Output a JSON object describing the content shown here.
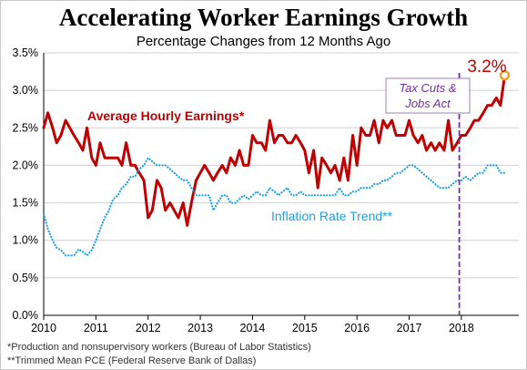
{
  "chart_data": {
    "type": "line",
    "title": "Accelerating Worker Earnings Growth",
    "subtitle": "Percentage Changes from 12 Months Ago",
    "xlim": [
      2010,
      2019.1
    ],
    "ylim": [
      0,
      3.5
    ],
    "grid": true,
    "x_ticks": [
      "2010",
      "2011",
      "2012",
      "2013",
      "2014",
      "2015",
      "2016",
      "2017",
      "2018"
    ],
    "y_ticks": [
      "0.0%",
      "0.5%",
      "1.0%",
      "1.5%",
      "2.0%",
      "2.5%",
      "3.0%",
      "3.5%"
    ],
    "series": [
      {
        "name": "Average Hourly Earnings*",
        "color": "#c00000",
        "style": "solid",
        "x": [
          2010.0,
          2010.08,
          2010.17,
          2010.25,
          2010.33,
          2010.42,
          2010.5,
          2010.58,
          2010.67,
          2010.75,
          2010.83,
          2010.92,
          2011.0,
          2011.08,
          2011.17,
          2011.25,
          2011.33,
          2011.42,
          2011.5,
          2011.58,
          2011.67,
          2011.75,
          2011.83,
          2011.92,
          2012.0,
          2012.08,
          2012.17,
          2012.25,
          2012.33,
          2012.42,
          2012.5,
          2012.58,
          2012.67,
          2012.75,
          2012.83,
          2012.92,
          2013.0,
          2013.08,
          2013.17,
          2013.25,
          2013.33,
          2013.42,
          2013.5,
          2013.58,
          2013.67,
          2013.75,
          2013.83,
          2013.92,
          2014.0,
          2014.08,
          2014.17,
          2014.25,
          2014.33,
          2014.42,
          2014.5,
          2014.58,
          2014.67,
          2014.75,
          2014.83,
          2014.92,
          2015.0,
          2015.08,
          2015.17,
          2015.25,
          2015.33,
          2015.42,
          2015.5,
          2015.58,
          2015.67,
          2015.75,
          2015.83,
          2015.92,
          2016.0,
          2016.08,
          2016.17,
          2016.25,
          2016.33,
          2016.42,
          2016.5,
          2016.58,
          2016.67,
          2016.75,
          2016.83,
          2016.92,
          2017.0,
          2017.08,
          2017.17,
          2017.25,
          2017.33,
          2017.42,
          2017.5,
          2017.58,
          2017.67,
          2017.75,
          2017.83,
          2017.92,
          2018.0,
          2018.08,
          2018.17,
          2018.25,
          2018.33,
          2018.42,
          2018.5,
          2018.58,
          2018.67,
          2018.75,
          2018.83
        ],
        "values": [
          2.5,
          2.7,
          2.5,
          2.3,
          2.4,
          2.6,
          2.5,
          2.4,
          2.3,
          2.2,
          2.5,
          2.1,
          2.0,
          2.3,
          2.1,
          2.1,
          2.1,
          2.1,
          2.0,
          2.3,
          2.0,
          2.0,
          1.9,
          1.8,
          1.3,
          1.4,
          1.8,
          1.7,
          1.4,
          1.5,
          1.4,
          1.3,
          1.5,
          1.2,
          1.5,
          1.8,
          1.9,
          2.0,
          1.9,
          1.8,
          1.9,
          2.0,
          1.9,
          2.1,
          2.0,
          2.2,
          2.0,
          2.0,
          2.4,
          2.3,
          2.3,
          2.2,
          2.6,
          2.3,
          2.4,
          2.4,
          2.3,
          2.3,
          2.4,
          2.3,
          2.2,
          1.9,
          2.2,
          1.7,
          2.1,
          2.0,
          1.9,
          2.0,
          1.8,
          2.1,
          1.8,
          2.4,
          2.0,
          2.5,
          2.4,
          2.4,
          2.6,
          2.3,
          2.6,
          2.5,
          2.6,
          2.4,
          2.4,
          2.4,
          2.6,
          2.4,
          2.3,
          2.4,
          2.2,
          2.3,
          2.2,
          2.3,
          2.2,
          2.6,
          2.2,
          2.3,
          2.4,
          2.4,
          2.5,
          2.6,
          2.6,
          2.7,
          2.8,
          2.8,
          2.9,
          2.8,
          3.2
        ]
      },
      {
        "name": "Inflation Rate Trend**",
        "color": "#1ba1e2",
        "style": "dotted",
        "x": [
          2010.0,
          2010.08,
          2010.17,
          2010.25,
          2010.33,
          2010.42,
          2010.5,
          2010.58,
          2010.67,
          2010.75,
          2010.83,
          2010.92,
          2011.0,
          2011.08,
          2011.17,
          2011.25,
          2011.33,
          2011.42,
          2011.5,
          2011.58,
          2011.67,
          2011.75,
          2011.83,
          2011.92,
          2012.0,
          2012.08,
          2012.17,
          2012.25,
          2012.33,
          2012.42,
          2012.5,
          2012.58,
          2012.67,
          2012.75,
          2012.83,
          2012.92,
          2013.0,
          2013.08,
          2013.17,
          2013.25,
          2013.33,
          2013.42,
          2013.5,
          2013.58,
          2013.67,
          2013.75,
          2013.83,
          2013.92,
          2014.0,
          2014.08,
          2014.17,
          2014.25,
          2014.33,
          2014.42,
          2014.5,
          2014.58,
          2014.67,
          2014.75,
          2014.83,
          2014.92,
          2015.0,
          2015.08,
          2015.17,
          2015.25,
          2015.33,
          2015.42,
          2015.5,
          2015.58,
          2015.67,
          2015.75,
          2015.83,
          2015.92,
          2016.0,
          2016.08,
          2016.17,
          2016.25,
          2016.33,
          2016.42,
          2016.5,
          2016.58,
          2016.67,
          2016.75,
          2016.83,
          2016.92,
          2017.0,
          2017.08,
          2017.17,
          2017.25,
          2017.33,
          2017.42,
          2017.5,
          2017.58,
          2017.67,
          2017.75,
          2017.83,
          2017.92,
          2018.0,
          2018.08,
          2018.17,
          2018.25,
          2018.33,
          2018.42,
          2018.5,
          2018.58,
          2018.67,
          2018.75,
          2018.83
        ],
        "values": [
          1.35,
          1.15,
          1.0,
          0.9,
          0.87,
          0.8,
          0.8,
          0.8,
          0.88,
          0.85,
          0.8,
          0.87,
          1.0,
          1.15,
          1.3,
          1.4,
          1.55,
          1.6,
          1.7,
          1.75,
          1.85,
          1.85,
          1.95,
          2.0,
          2.1,
          2.05,
          2.0,
          2.0,
          2.0,
          1.95,
          1.9,
          1.85,
          1.8,
          1.8,
          1.7,
          1.6,
          1.6,
          1.6,
          1.6,
          1.4,
          1.5,
          1.6,
          1.6,
          1.5,
          1.5,
          1.55,
          1.6,
          1.55,
          1.6,
          1.65,
          1.6,
          1.6,
          1.7,
          1.65,
          1.6,
          1.65,
          1.7,
          1.6,
          1.6,
          1.65,
          1.6,
          1.6,
          1.6,
          1.6,
          1.6,
          1.6,
          1.6,
          1.6,
          1.7,
          1.6,
          1.6,
          1.65,
          1.65,
          1.7,
          1.7,
          1.7,
          1.75,
          1.75,
          1.8,
          1.8,
          1.85,
          1.9,
          1.9,
          1.95,
          2.0,
          2.0,
          1.95,
          1.9,
          1.85,
          1.8,
          1.75,
          1.7,
          1.7,
          1.7,
          1.75,
          1.8,
          1.8,
          1.85,
          1.8,
          1.85,
          1.9,
          1.9,
          2.0,
          2.0,
          2.0,
          1.9,
          1.9
        ]
      }
    ],
    "annotations": {
      "earnings_label": "Average Hourly Earnings*",
      "inflation_label": "Inflation Rate Trend**",
      "last_value": "3.2%",
      "event_line_x": 2017.96,
      "event_line_color": "#7030a0",
      "event_label_line1": "Tax Cuts &",
      "event_label_line2": "Jobs Act",
      "end_marker_color": "#f0a020"
    }
  },
  "footnotes": {
    "note1": "*Production and nonsupervisory workers (Bureau of Labor Statistics)",
    "note2": "**Trimmed Mean PCE (Federal Reserve Bank of Dallas)"
  }
}
